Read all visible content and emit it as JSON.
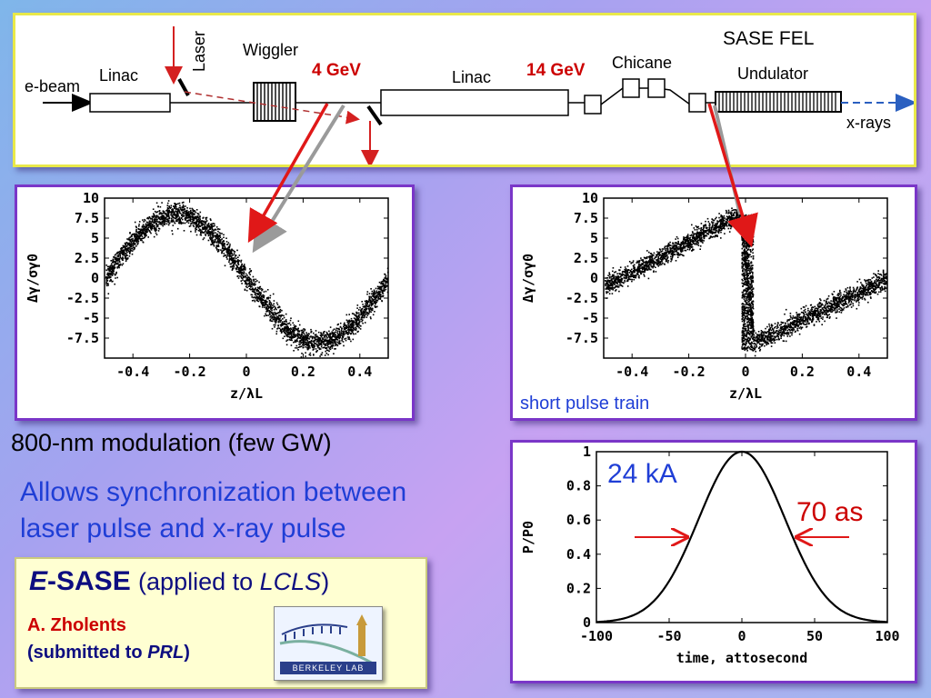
{
  "schematic": {
    "title": "SASE FEL",
    "labels": {
      "ebeam": "e-beam",
      "linac1": "Linac",
      "laser": "Laser",
      "wiggler": "Wiggler",
      "energy1": "4 GeV",
      "linac2": "Linac",
      "energy2": "14 GeV",
      "chicane": "Chicane",
      "undulator": "Undulator",
      "xrays": "x-rays"
    }
  },
  "chart_data": [
    {
      "type": "scatter",
      "description_of_data": "energy modulation of electrons after wiggler",
      "xlabel": "z/λL",
      "ylabel": "Δγ/σγ0",
      "xlim": [
        -0.5,
        0.5
      ],
      "ylim": [
        -10,
        10
      ],
      "xticks": [
        "-0.4",
        "-0.2",
        "0",
        "0.2",
        "0.4"
      ],
      "yticks": [
        "10",
        "7.5",
        "5",
        "2.5",
        "0",
        "-2.5",
        "-5",
        "-7.5"
      ],
      "curve": {
        "kind": "sine",
        "amplitude": 8,
        "period": 1,
        "peak_at": -0.25
      }
    },
    {
      "type": "scatter",
      "annotation": "short pulse train",
      "xlabel": "z/λL",
      "ylabel": "Δγ/σγ0",
      "xlim": [
        -0.5,
        0.5
      ],
      "ylim": [
        -10,
        10
      ],
      "xticks": [
        "-0.4",
        "-0.2",
        "0",
        "0.2",
        "0.4"
      ],
      "yticks": [
        "10",
        "7.5",
        "5",
        "2.5",
        "0",
        "-2.5",
        "-5",
        "-7.5"
      ],
      "curve": {
        "kind": "sawtooth",
        "max": 8,
        "min": -8.5,
        "jump_at": 0
      }
    },
    {
      "type": "line",
      "xlabel": "time, attosecond",
      "ylabel": "P/P0",
      "xlim": [
        -100,
        100
      ],
      "ylim": [
        0,
        1
      ],
      "xticks": [
        "-100",
        "-50",
        "0",
        "50",
        "100"
      ],
      "yticks": [
        "1",
        "0.8",
        "0.6",
        "0.4",
        "0.2",
        "0"
      ],
      "curve": {
        "kind": "gaussian",
        "peak": 1,
        "center": 0,
        "fwhm": 70
      },
      "annotations": [
        "24 kA",
        "70 as"
      ]
    }
  ],
  "captions": {
    "modulation": "800-nm modulation (few GW)",
    "sync_line1": "Allows synchronization between",
    "sync_line2": "laser pulse and x-ray pulse"
  },
  "reference": {
    "title_e": "E",
    "title_rest": "-SASE",
    "applied_open": "(applied to ",
    "lcls": "LCLS",
    "applied_close": ")",
    "author": "A. Zholents",
    "submitted_open": "(submitted to ",
    "journal": "PRL",
    "submitted_close": ")",
    "logo_text": "BERKELEY LAB"
  },
  "colors": {
    "red_text": "#cc0000",
    "blue_text": "#1f3ed6",
    "frame_purple": "#7a36c8",
    "frame_yellow": "#e8e84a"
  }
}
